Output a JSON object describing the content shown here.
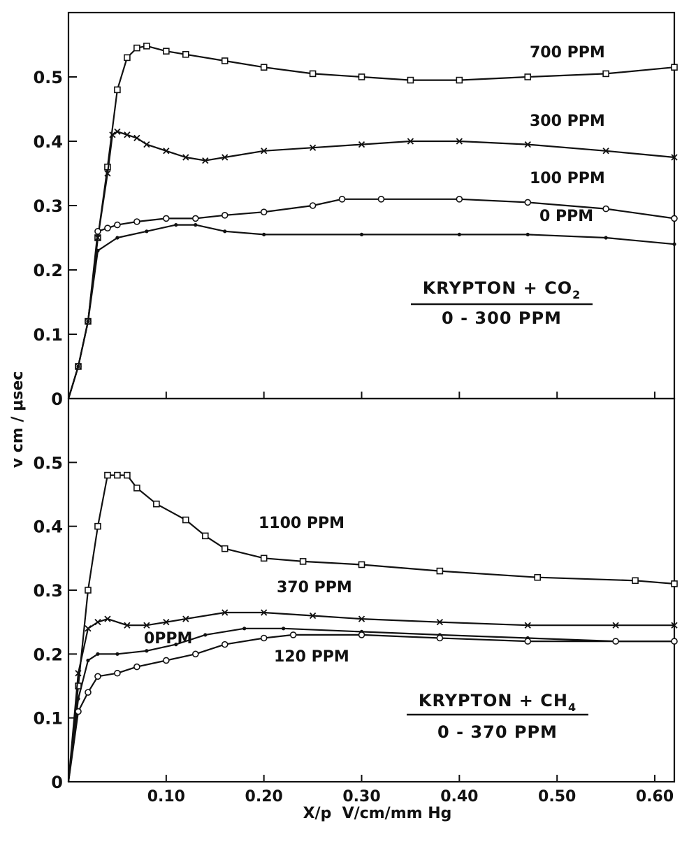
{
  "chart_data": [
    {
      "type": "line",
      "xlabel": "X/p  V/cm/mm Hg",
      "ylabel": "v  cm / μsec",
      "xlim": [
        0,
        0.62
      ],
      "ylim": [
        0,
        0.6
      ],
      "y_ticks": [
        "0",
        "0.1",
        "0.2",
        "0.3",
        "0.4",
        "0.5"
      ],
      "x_ticks": [],
      "grid": false,
      "legend_block": {
        "line1_main": "KRYPTON + CO",
        "line1_sub": "2",
        "line2": "0 - 300 PPM"
      },
      "series": [
        {
          "name": "700 PPM",
          "marker": "square",
          "x": [
            0,
            0.01,
            0.02,
            0.03,
            0.04,
            0.05,
            0.06,
            0.07,
            0.08,
            0.1,
            0.12,
            0.16,
            0.2,
            0.25,
            0.3,
            0.35,
            0.4,
            0.47,
            0.55,
            0.62
          ],
          "y": [
            0,
            0.05,
            0.12,
            0.25,
            0.36,
            0.48,
            0.53,
            0.545,
            0.548,
            0.54,
            0.535,
            0.525,
            0.515,
            0.505,
            0.5,
            0.495,
            0.495,
            0.5,
            0.505,
            0.515
          ]
        },
        {
          "name": "300 PPM",
          "marker": "x",
          "x": [
            0,
            0.01,
            0.02,
            0.03,
            0.04,
            0.045,
            0.05,
            0.06,
            0.07,
            0.08,
            0.1,
            0.12,
            0.14,
            0.16,
            0.2,
            0.25,
            0.3,
            0.35,
            0.4,
            0.47,
            0.55,
            0.62
          ],
          "y": [
            0,
            0.05,
            0.12,
            0.25,
            0.35,
            0.41,
            0.415,
            0.41,
            0.405,
            0.395,
            0.385,
            0.375,
            0.37,
            0.375,
            0.385,
            0.39,
            0.395,
            0.4,
            0.4,
            0.395,
            0.385,
            0.375
          ]
        },
        {
          "name": "100 PPM",
          "marker": "circle",
          "x": [
            0,
            0.01,
            0.02,
            0.03,
            0.04,
            0.05,
            0.07,
            0.1,
            0.13,
            0.16,
            0.2,
            0.25,
            0.28,
            0.32,
            0.4,
            0.47,
            0.55,
            0.62
          ],
          "y": [
            0,
            0.05,
            0.12,
            0.26,
            0.265,
            0.27,
            0.275,
            0.28,
            0.28,
            0.285,
            0.29,
            0.3,
            0.31,
            0.31,
            0.31,
            0.305,
            0.295,
            0.28
          ]
        },
        {
          "name": "0 PPM",
          "marker": "dot",
          "x": [
            0,
            0.01,
            0.02,
            0.03,
            0.05,
            0.08,
            0.11,
            0.13,
            0.16,
            0.2,
            0.3,
            0.4,
            0.47,
            0.55,
            0.62
          ],
          "y": [
            0,
            0.05,
            0.12,
            0.23,
            0.25,
            0.26,
            0.27,
            0.27,
            0.26,
            0.255,
            0.255,
            0.255,
            0.255,
            0.25,
            0.24
          ]
        }
      ]
    },
    {
      "type": "line",
      "xlabel": "X/p  V/cm/mm Hg",
      "ylabel": "v  cm / μsec",
      "xlim": [
        0,
        0.62
      ],
      "ylim": [
        0,
        0.6
      ],
      "y_ticks": [
        "0",
        "0.1",
        "0.2",
        "0.3",
        "0.4",
        "0.5"
      ],
      "x_ticks": [
        "0.10",
        "0.20",
        "0.30",
        "0.40",
        "0.50",
        "0.60"
      ],
      "grid": false,
      "legend_block": {
        "line1_main": "KRYPTON + CH",
        "line1_sub": "4",
        "line2": "0 - 370 PPM"
      },
      "series": [
        {
          "name": "1100 PPM",
          "marker": "square",
          "x": [
            0,
            0.01,
            0.02,
            0.03,
            0.04,
            0.05,
            0.06,
            0.07,
            0.09,
            0.12,
            0.14,
            0.16,
            0.2,
            0.24,
            0.3,
            0.38,
            0.48,
            0.58,
            0.62
          ],
          "y": [
            0,
            0.15,
            0.3,
            0.4,
            0.48,
            0.48,
            0.48,
            0.46,
            0.435,
            0.41,
            0.385,
            0.365,
            0.35,
            0.345,
            0.34,
            0.33,
            0.32,
            0.315,
            0.31
          ]
        },
        {
          "name": "370 PPM",
          "marker": "x",
          "x": [
            0,
            0.01,
            0.02,
            0.03,
            0.04,
            0.06,
            0.08,
            0.1,
            0.12,
            0.16,
            0.2,
            0.25,
            0.3,
            0.38,
            0.47,
            0.56,
            0.62
          ],
          "y": [
            0,
            0.17,
            0.24,
            0.25,
            0.255,
            0.245,
            0.245,
            0.25,
            0.255,
            0.265,
            0.265,
            0.26,
            0.255,
            0.25,
            0.245,
            0.245,
            0.245
          ]
        },
        {
          "name": "0PPM",
          "marker": "dot",
          "x": [
            0,
            0.01,
            0.02,
            0.03,
            0.05,
            0.08,
            0.11,
            0.14,
            0.18,
            0.22,
            0.3,
            0.38,
            0.47,
            0.56,
            0.62
          ],
          "y": [
            0,
            0.13,
            0.19,
            0.2,
            0.2,
            0.205,
            0.215,
            0.23,
            0.24,
            0.24,
            0.235,
            0.23,
            0.225,
            0.22,
            0.22
          ]
        },
        {
          "name": "120 PPM",
          "marker": "circle",
          "x": [
            0,
            0.01,
            0.02,
            0.03,
            0.05,
            0.07,
            0.1,
            0.13,
            0.16,
            0.2,
            0.23,
            0.3,
            0.38,
            0.47,
            0.56,
            0.62
          ],
          "y": [
            0,
            0.11,
            0.14,
            0.165,
            0.17,
            0.18,
            0.19,
            0.2,
            0.215,
            0.225,
            0.23,
            0.23,
            0.225,
            0.22,
            0.22,
            0.22
          ]
        }
      ]
    }
  ]
}
